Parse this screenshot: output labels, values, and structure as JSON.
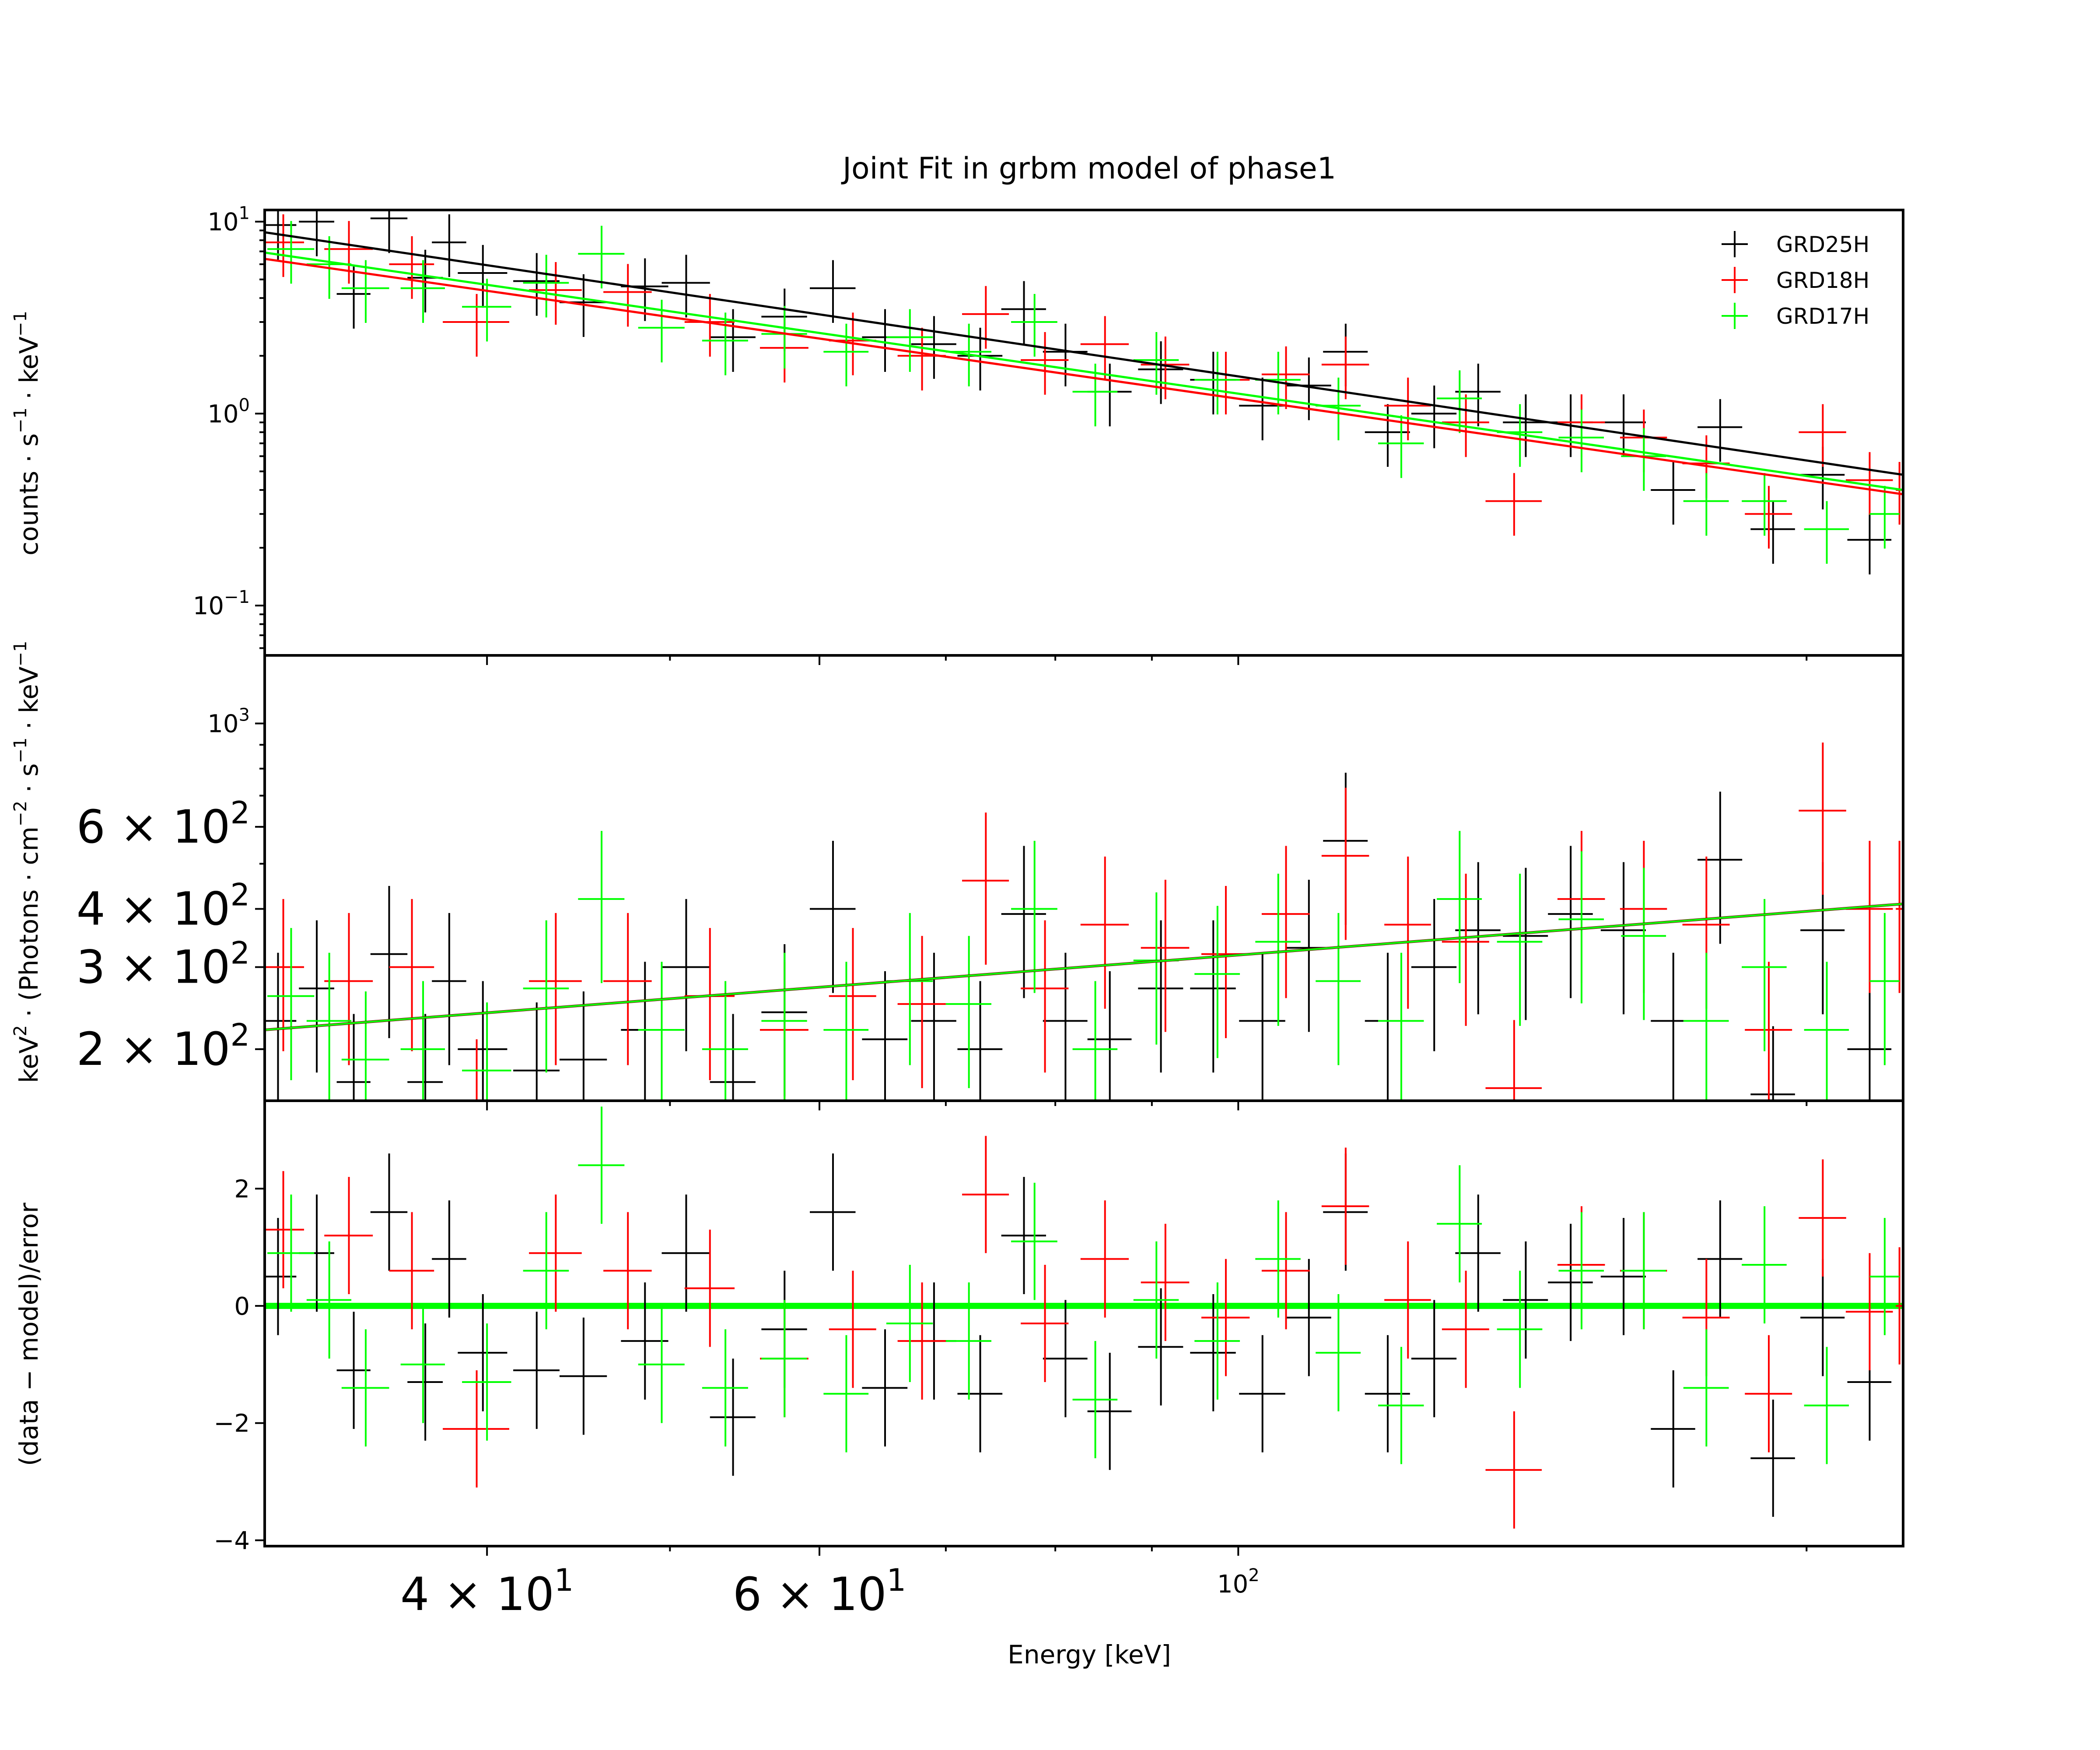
{
  "chart_data": {
    "type": "scatter",
    "title": "Joint Fit  in grbm model of phase1",
    "xlabel": "Energy [keV]",
    "xscale": "log",
    "xlim": [
      30.5,
      225
    ],
    "x_ticks": [
      {
        "value": 40,
        "mantissa": "4",
        "base": "10",
        "exp": "1",
        "size": "large"
      },
      {
        "value": 60,
        "mantissa": "6",
        "base": "10",
        "exp": "1",
        "size": "large"
      },
      {
        "value": 100,
        "mantissa": "",
        "base": "10",
        "exp": "2",
        "size": "small"
      }
    ],
    "legend": {
      "position": "top-right",
      "entries": [
        {
          "name": "GRD25H",
          "color": "#000000"
        },
        {
          "name": "GRD18H",
          "color": "#ff0000"
        },
        {
          "name": "GRD17H",
          "color": "#00ff00"
        }
      ]
    },
    "panels": [
      {
        "id": "counts",
        "ylabel_parts": [
          "counts · s",
          "−1",
          " · keV",
          "−1"
        ],
        "yscale": "log",
        "ylim": [
          0.055,
          11.5
        ],
        "y_ticks": [
          {
            "value": 10,
            "mantissa": "",
            "base": "10",
            "exp": "1",
            "size": "small"
          },
          {
            "value": 1,
            "mantissa": "",
            "base": "10",
            "exp": "0",
            "size": "small"
          },
          {
            "value": 0.1,
            "mantissa": "",
            "base": "10",
            "exp": "−1",
            "size": "small"
          }
        ]
      },
      {
        "id": "unfolded",
        "ylabel_parts": [
          "keV",
          "2",
          " · (Photons · cm",
          "−2",
          " · s",
          "−1",
          " · keV",
          "−1"
        ],
        "yscale": "log",
        "ylim": [
          155,
          1400
        ],
        "y_ticks": [
          {
            "value": 1000,
            "mantissa": "",
            "base": "10",
            "exp": "3",
            "size": "small"
          },
          {
            "value": 600,
            "mantissa": "6",
            "base": "10",
            "exp": "2",
            "size": "large"
          },
          {
            "value": 400,
            "mantissa": "4",
            "base": "10",
            "exp": "2",
            "size": "large"
          },
          {
            "value": 300,
            "mantissa": "3",
            "base": "10",
            "exp": "2",
            "size": "large"
          },
          {
            "value": 200,
            "mantissa": "2",
            "base": "10",
            "exp": "2",
            "size": "large"
          }
        ]
      },
      {
        "id": "residuals",
        "ylabel_parts": [
          "(data − model)/error"
        ],
        "yscale": "linear",
        "ylim": [
          -4.1,
          3.5
        ],
        "y_ticks": [
          {
            "value": 2,
            "label": "2",
            "size": "small"
          },
          {
            "value": 0,
            "label": "0",
            "size": "small"
          },
          {
            "value": -2,
            "label": "−2",
            "size": "small"
          },
          {
            "value": -4,
            "label": "−4",
            "size": "small"
          }
        ]
      }
    ],
    "model": {
      "description": "power-law style fit, log-log straight lines per detector",
      "counts": [
        {
          "detector": "GRD25H",
          "points": [
            [
              30.5,
              8.8
            ],
            [
              225,
              0.48
            ]
          ]
        },
        {
          "detector": "GRD18H",
          "points": [
            [
              30.5,
              6.4
            ],
            [
              225,
              0.38
            ]
          ]
        },
        {
          "detector": "GRD17H",
          "points": [
            [
              30.5,
              6.9
            ],
            [
              225,
              0.4
            ]
          ]
        }
      ],
      "unfolded": [
        [
          30.5,
          220
        ],
        [
          225,
          410
        ]
      ]
    },
    "series": [
      {
        "name": "GRD25H",
        "color": "#000000",
        "points": [
          {
            "x": 31,
            "xerr": 0.7,
            "c": 9.6,
            "u": 230,
            "r": 0.5
          },
          {
            "x": 32.5,
            "xerr": 0.7,
            "c": 10.0,
            "u": 270,
            "r": 0.9
          },
          {
            "x": 34,
            "xerr": 0.7,
            "c": 4.2,
            "u": 170,
            "r": -1.1
          },
          {
            "x": 35.5,
            "xerr": 0.8,
            "c": 10.4,
            "u": 320,
            "r": 1.6
          },
          {
            "x": 37.1,
            "xerr": 0.8,
            "c": 5.1,
            "u": 170,
            "r": -1.3
          },
          {
            "x": 38.2,
            "xerr": 0.8,
            "c": 7.8,
            "u": 280,
            "r": 0.8
          },
          {
            "x": 39.8,
            "xerr": 1.2,
            "c": 5.4,
            "u": 200,
            "r": -0.8
          },
          {
            "x": 42.5,
            "xerr": 1.2,
            "c": 4.9,
            "u": 180,
            "r": -1.1
          },
          {
            "x": 45,
            "xerr": 1.3,
            "c": 3.8,
            "u": 190,
            "r": -1.2
          },
          {
            "x": 48.5,
            "xerr": 1.4,
            "c": 4.6,
            "u": 220,
            "r": -0.6
          },
          {
            "x": 51,
            "xerr": 1.5,
            "c": 4.8,
            "u": 300,
            "r": 0.9
          },
          {
            "x": 54,
            "xerr": 1.5,
            "c": 2.5,
            "u": 170,
            "r": -1.9
          },
          {
            "x": 57.5,
            "xerr": 1.6,
            "c": 3.2,
            "u": 240,
            "r": -0.4
          },
          {
            "x": 61,
            "xerr": 1.7,
            "c": 4.5,
            "u": 400,
            "r": 1.6
          },
          {
            "x": 65,
            "xerr": 1.8,
            "c": 2.5,
            "u": 210,
            "r": -1.4
          },
          {
            "x": 69,
            "xerr": 1.9,
            "c": 2.3,
            "u": 230,
            "r": -0.6
          },
          {
            "x": 73,
            "xerr": 2.0,
            "c": 2.0,
            "u": 200,
            "r": -1.5
          },
          {
            "x": 77,
            "xerr": 2.1,
            "c": 3.5,
            "u": 390,
            "r": 1.2
          },
          {
            "x": 81,
            "xerr": 2.2,
            "c": 2.1,
            "u": 230,
            "r": -0.9
          },
          {
            "x": 85.5,
            "xerr": 2.3,
            "c": 1.3,
            "u": 210,
            "r": -1.8
          },
          {
            "x": 91,
            "xerr": 2.5,
            "c": 1.7,
            "u": 270,
            "r": -0.7
          },
          {
            "x": 97,
            "xerr": 2.7,
            "c": 1.5,
            "u": 270,
            "r": -0.8
          },
          {
            "x": 103,
            "xerr": 2.9,
            "c": 1.1,
            "u": 230,
            "r": -1.5
          },
          {
            "x": 109,
            "xerr": 3.0,
            "c": 1.4,
            "u": 330,
            "r": -0.2
          },
          {
            "x": 114,
            "xerr": 3.1,
            "c": 2.1,
            "u": 560,
            "r": 1.6
          },
          {
            "x": 120,
            "xerr": 3.3,
            "c": 0.8,
            "u": 230,
            "r": -1.5
          },
          {
            "x": 127,
            "xerr": 3.5,
            "c": 1.0,
            "u": 300,
            "r": -0.9
          },
          {
            "x": 134,
            "xerr": 3.7,
            "c": 1.3,
            "u": 360,
            "r": 0.9
          },
          {
            "x": 142,
            "xerr": 3.9,
            "c": 0.9,
            "u": 350,
            "r": 0.1
          },
          {
            "x": 150,
            "xerr": 4.1,
            "c": 0.9,
            "u": 390,
            "r": 0.4
          },
          {
            "x": 160,
            "xerr": 4.4,
            "c": 0.9,
            "u": 360,
            "r": 0.5
          },
          {
            "x": 170,
            "xerr": 4.6,
            "c": 0.4,
            "u": 230,
            "r": -2.1
          },
          {
            "x": 180,
            "xerr": 4.9,
            "c": 0.85,
            "u": 510,
            "r": 0.8
          },
          {
            "x": 192,
            "xerr": 5.2,
            "c": 0.25,
            "u": 160,
            "r": -2.6
          },
          {
            "x": 204,
            "xerr": 5.5,
            "c": 0.48,
            "u": 360,
            "r": -0.2
          },
          {
            "x": 216,
            "xerr": 5.8,
            "c": 0.22,
            "u": 200,
            "r": -1.3
          }
        ]
      },
      {
        "name": "GRD18H",
        "color": "#ff0000",
        "points": [
          {
            "x": 31.2,
            "xerr": 0.8,
            "c": 7.8,
            "u": 300,
            "r": 1.3
          },
          {
            "x": 33.8,
            "xerr": 1.0,
            "c": 7.2,
            "u": 280,
            "r": 1.2
          },
          {
            "x": 36.5,
            "xerr": 1.0,
            "c": 6.0,
            "u": 300,
            "r": 0.6
          },
          {
            "x": 39.5,
            "xerr": 1.6,
            "c": 3.0,
            "u": 150,
            "r": -2.1
          },
          {
            "x": 43.5,
            "xerr": 1.4,
            "c": 4.4,
            "u": 280,
            "r": 0.9
          },
          {
            "x": 47.5,
            "xerr": 1.4,
            "c": 4.3,
            "u": 280,
            "r": 0.6
          },
          {
            "x": 52.5,
            "xerr": 1.6,
            "c": 3.0,
            "u": 260,
            "r": 0.3
          },
          {
            "x": 57.5,
            "xerr": 1.7,
            "c": 2.2,
            "u": 220,
            "r": -0.9
          },
          {
            "x": 62.5,
            "xerr": 1.8,
            "c": 2.4,
            "u": 260,
            "r": -0.4
          },
          {
            "x": 68,
            "xerr": 2.0,
            "c": 2.0,
            "u": 250,
            "r": -0.6
          },
          {
            "x": 73.5,
            "xerr": 2.1,
            "c": 3.3,
            "u": 460,
            "r": 1.9
          },
          {
            "x": 79,
            "xerr": 2.3,
            "c": 1.9,
            "u": 270,
            "r": -0.3
          },
          {
            "x": 85,
            "xerr": 2.5,
            "c": 2.3,
            "u": 370,
            "r": 0.8
          },
          {
            "x": 91.5,
            "xerr": 2.7,
            "c": 1.8,
            "u": 330,
            "r": 0.4
          },
          {
            "x": 98.5,
            "xerr": 2.9,
            "c": 1.5,
            "u": 320,
            "r": -0.2
          },
          {
            "x": 106,
            "xerr": 3.1,
            "c": 1.6,
            "u": 390,
            "r": 0.6
          },
          {
            "x": 114,
            "xerr": 3.3,
            "c": 1.8,
            "u": 520,
            "r": 1.7
          },
          {
            "x": 123,
            "xerr": 3.5,
            "c": 1.1,
            "u": 370,
            "r": 0.1
          },
          {
            "x": 132,
            "xerr": 3.8,
            "c": 0.9,
            "u": 340,
            "r": -0.4
          },
          {
            "x": 140,
            "xerr": 4.8,
            "c": 0.35,
            "u": 165,
            "r": -2.8
          },
          {
            "x": 152,
            "xerr": 4.4,
            "c": 0.9,
            "u": 420,
            "r": 0.7
          },
          {
            "x": 164,
            "xerr": 4.7,
            "c": 0.75,
            "u": 400,
            "r": 0.6
          },
          {
            "x": 177,
            "xerr": 5.1,
            "c": 0.55,
            "u": 370,
            "r": -0.2
          },
          {
            "x": 191,
            "xerr": 5.5,
            "c": 0.3,
            "u": 220,
            "r": -1.5
          },
          {
            "x": 204,
            "xerr": 5.9,
            "c": 0.8,
            "u": 650,
            "r": 1.5
          },
          {
            "x": 216,
            "xerr": 6.2,
            "c": 0.45,
            "u": 400,
            "r": -0.1
          },
          {
            "x": 224,
            "xerr": 1.0,
            "c": 0.4,
            "u": 400,
            "r": 0.0
          }
        ]
      },
      {
        "name": "GRD17H",
        "color": "#00ff00",
        "points": [
          {
            "x": 31.5,
            "xerr": 0.9,
            "c": 7.2,
            "u": 260,
            "r": 0.9
          },
          {
            "x": 33,
            "xerr": 0.9,
            "c": 6.0,
            "u": 230,
            "r": 0.1
          },
          {
            "x": 34.5,
            "xerr": 1.0,
            "c": 4.5,
            "u": 190,
            "r": -1.4
          },
          {
            "x": 37,
            "xerr": 1.0,
            "c": 4.5,
            "u": 200,
            "r": -1.0
          },
          {
            "x": 40,
            "xerr": 1.2,
            "c": 3.6,
            "u": 180,
            "r": -1.3
          },
          {
            "x": 43,
            "xerr": 1.2,
            "c": 4.8,
            "u": 270,
            "r": 0.6
          },
          {
            "x": 46,
            "xerr": 1.3,
            "c": 6.8,
            "u": 420,
            "r": 2.4
          },
          {
            "x": 49.5,
            "xerr": 1.4,
            "c": 2.8,
            "u": 220,
            "r": -1.0
          },
          {
            "x": 53.5,
            "xerr": 1.5,
            "c": 2.4,
            "u": 200,
            "r": -1.4
          },
          {
            "x": 57.5,
            "xerr": 1.6,
            "c": 2.6,
            "u": 230,
            "r": -0.9
          },
          {
            "x": 62,
            "xerr": 1.7,
            "c": 2.1,
            "u": 220,
            "r": -1.5
          },
          {
            "x": 67,
            "xerr": 1.9,
            "c": 2.5,
            "u": 280,
            "r": -0.3
          },
          {
            "x": 72,
            "xerr": 2.0,
            "c": 2.1,
            "u": 250,
            "r": -0.6
          },
          {
            "x": 78,
            "xerr": 2.2,
            "c": 3.0,
            "u": 400,
            "r": 1.1
          },
          {
            "x": 84,
            "xerr": 2.3,
            "c": 1.3,
            "u": 200,
            "r": -1.6
          },
          {
            "x": 90.5,
            "xerr": 2.5,
            "c": 1.9,
            "u": 310,
            "r": 0.1
          },
          {
            "x": 97.5,
            "xerr": 2.7,
            "c": 1.5,
            "u": 290,
            "r": -0.6
          },
          {
            "x": 105,
            "xerr": 2.9,
            "c": 1.5,
            "u": 340,
            "r": 0.8
          },
          {
            "x": 113,
            "xerr": 3.1,
            "c": 1.1,
            "u": 280,
            "r": -0.8
          },
          {
            "x": 122,
            "xerr": 3.4,
            "c": 0.7,
            "u": 230,
            "r": -1.7
          },
          {
            "x": 131,
            "xerr": 3.6,
            "c": 1.2,
            "u": 420,
            "r": 1.4
          },
          {
            "x": 141,
            "xerr": 3.9,
            "c": 0.8,
            "u": 340,
            "r": -0.4
          },
          {
            "x": 152,
            "xerr": 4.2,
            "c": 0.75,
            "u": 380,
            "r": 0.6
          },
          {
            "x": 164,
            "xerr": 4.5,
            "c": 0.6,
            "u": 350,
            "r": 0.6
          },
          {
            "x": 177,
            "xerr": 4.9,
            "c": 0.35,
            "u": 230,
            "r": -1.4
          },
          {
            "x": 190,
            "xerr": 5.2,
            "c": 0.35,
            "u": 300,
            "r": 0.7
          },
          {
            "x": 205,
            "xerr": 5.6,
            "c": 0.25,
            "u": 220,
            "r": -1.7
          },
          {
            "x": 220,
            "xerr": 4.0,
            "c": 0.3,
            "u": 280,
            "r": 0.5
          }
        ]
      }
    ]
  }
}
